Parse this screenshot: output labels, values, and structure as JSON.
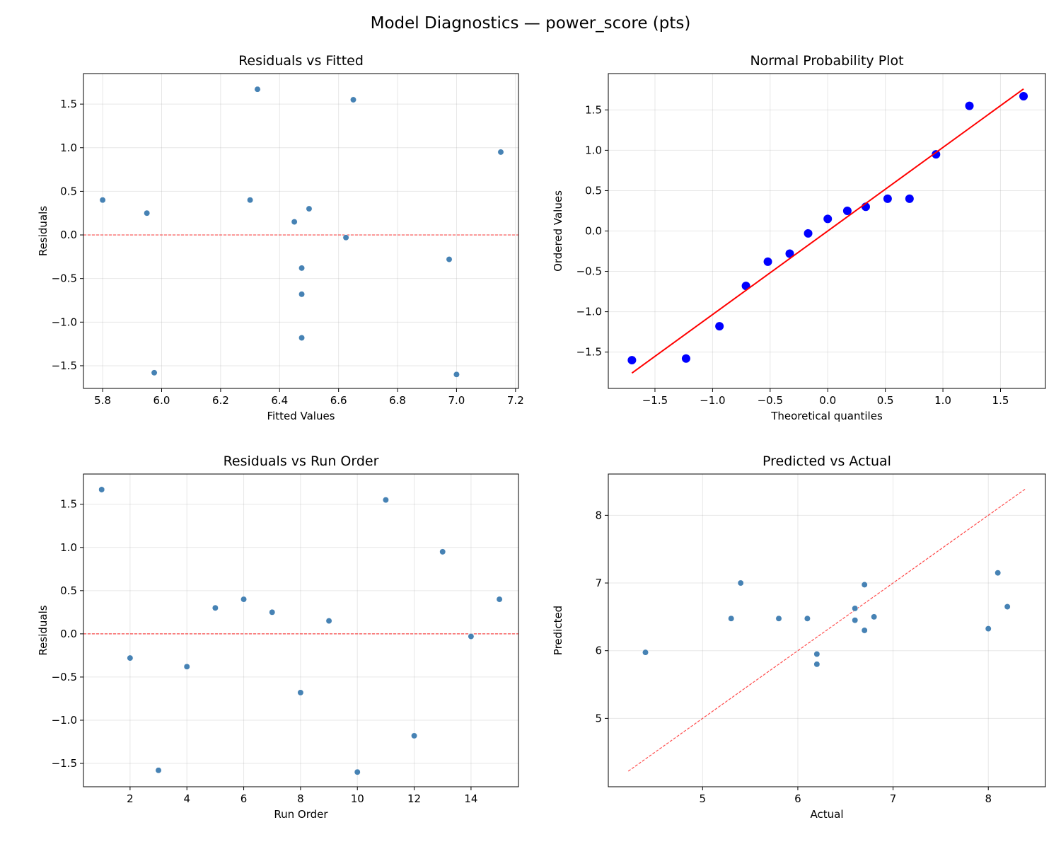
{
  "title": "Model Diagnostics — power_score (pts)",
  "colors": {
    "points": "#4682b4",
    "qq_points": "#0000ff",
    "fit_line": "#ff0000",
    "ref_line": "#ff0000"
  },
  "chart_data": [
    {
      "type": "scatter",
      "title": "Residuals vs Fitted",
      "xlabel": "Fitted Values",
      "ylabel": "Residuals",
      "xlim": [
        5.735,
        7.21
      ],
      "ylim": [
        -1.76,
        1.85
      ],
      "xticks": [
        5.8,
        6.0,
        6.2,
        6.4,
        6.6,
        6.8,
        7.0,
        7.2
      ],
      "xtick_labels": [
        "5.8",
        "6.0",
        "6.2",
        "6.4",
        "6.6",
        "6.8",
        "7.0",
        "7.2"
      ],
      "yticks": [
        -1.5,
        -1.0,
        -0.5,
        0.0,
        0.5,
        1.0,
        1.5
      ],
      "ytick_labels": [
        "−1.5",
        "−1.0",
        "−0.5",
        "0.0",
        "0.5",
        "1.0",
        "1.5"
      ],
      "grid": true,
      "x": [
        6.325,
        6.975,
        5.975,
        6.475,
        6.5,
        6.3,
        5.95,
        6.475,
        6.45,
        7.0,
        6.65,
        6.475,
        7.15,
        6.625,
        5.8
      ],
      "y": [
        1.67,
        -0.28,
        -1.58,
        -0.38,
        0.3,
        0.4,
        0.25,
        -0.68,
        0.15,
        -1.6,
        1.55,
        -1.18,
        0.95,
        -0.03,
        0.4
      ],
      "hline": 0
    },
    {
      "type": "scatter",
      "title": "Normal Probability Plot",
      "xlabel": "Theoretical quantiles",
      "ylabel": "Ordered Values",
      "xlim": [
        -1.905,
        1.89
      ],
      "ylim": [
        -1.95,
        1.95
      ],
      "xticks": [
        -1.5,
        -1.0,
        -0.5,
        0.0,
        0.5,
        1.0,
        1.5
      ],
      "xtick_labels": [
        "−1.5",
        "−1.0",
        "−0.5",
        "0.0",
        "0.5",
        "1.0",
        "1.5"
      ],
      "yticks": [
        -1.5,
        -1.0,
        -0.5,
        0.0,
        0.5,
        1.0,
        1.5
      ],
      "ytick_labels": [
        "−1.5",
        "−1.0",
        "−0.5",
        "0.0",
        "0.5",
        "1.0",
        "1.5"
      ],
      "grid": true,
      "x": [
        -1.7,
        -1.23,
        -0.94,
        -0.71,
        -0.52,
        -0.33,
        -0.17,
        0.0,
        0.17,
        0.33,
        0.52,
        0.71,
        0.94,
        1.23,
        1.7
      ],
      "y": [
        -1.6,
        -1.58,
        -1.18,
        -0.68,
        -0.38,
        -0.28,
        -0.03,
        0.15,
        0.25,
        0.3,
        0.4,
        0.4,
        0.95,
        1.55,
        1.67
      ],
      "fit_line": {
        "slope": 1.035,
        "intercept": 0.0,
        "x_range": [
          -1.7,
          1.7
        ]
      }
    },
    {
      "type": "scatter",
      "title": "Residuals vs Run Order",
      "xlabel": "Run Order",
      "ylabel": "Residuals",
      "xlim": [
        0.36,
        15.67
      ],
      "ylim": [
        -1.77,
        1.85
      ],
      "xticks": [
        2,
        4,
        6,
        8,
        10,
        12,
        14
      ],
      "xtick_labels": [
        "2",
        "4",
        "6",
        "8",
        "10",
        "12",
        "14"
      ],
      "yticks": [
        -1.5,
        -1.0,
        -0.5,
        0.0,
        0.5,
        1.0,
        1.5
      ],
      "ytick_labels": [
        "−1.5",
        "−1.0",
        "−0.5",
        "0.0",
        "0.5",
        "1.0",
        "1.5"
      ],
      "grid": true,
      "x": [
        1,
        2,
        3,
        4,
        5,
        6,
        7,
        8,
        9,
        10,
        11,
        12,
        13,
        14,
        15
      ],
      "y": [
        1.67,
        -0.28,
        -1.58,
        -0.38,
        0.3,
        0.4,
        0.25,
        -0.68,
        0.15,
        -1.6,
        1.55,
        -1.18,
        0.95,
        -0.03,
        0.4
      ],
      "hline": 0
    },
    {
      "type": "scatter",
      "title": "Predicted vs Actual",
      "xlabel": "Actual",
      "ylabel": "Predicted",
      "xlim": [
        4.01,
        8.6
      ],
      "ylim": [
        3.99,
        8.61
      ],
      "xticks": [
        5,
        6,
        7,
        8
      ],
      "xtick_labels": [
        "5",
        "6",
        "7",
        "8"
      ],
      "yticks": [
        5,
        6,
        7,
        8
      ],
      "ytick_labels": [
        "5",
        "6",
        "7",
        "8"
      ],
      "grid": true,
      "x": [
        8.0,
        6.7,
        4.4,
        6.1,
        6.8,
        6.7,
        6.2,
        5.8,
        6.6,
        5.4,
        8.2,
        5.3,
        8.1,
        6.6,
        6.2
      ],
      "y": [
        6.325,
        6.975,
        5.975,
        6.475,
        6.5,
        6.3,
        5.95,
        6.475,
        6.45,
        7.0,
        6.65,
        6.475,
        7.15,
        6.625,
        5.8
      ],
      "identity_line": [
        4.22,
        8.39
      ]
    }
  ]
}
